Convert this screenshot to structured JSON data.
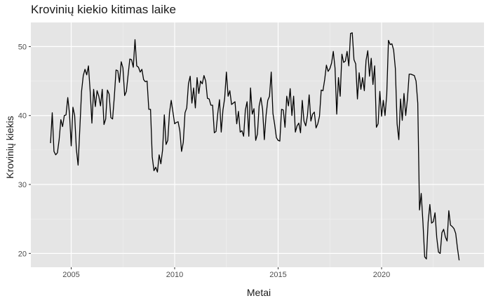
{
  "chart_data": {
    "type": "line",
    "title": "Krovinių kiekio kitimas laike",
    "xlabel": "Metai",
    "ylabel": "Krovinių kiekis",
    "x_start": 2004.0,
    "x_step_months": 1,
    "xlim": [
      2003.05,
      2024.95
    ],
    "ylim": [
      18.0,
      53.5
    ],
    "xticks": [
      2005,
      2010,
      2015,
      2020
    ],
    "yticks": [
      20,
      30,
      40,
      50
    ],
    "xtick_labels": [
      "2005",
      "2010",
      "2015",
      "2020"
    ],
    "ytick_labels": [
      "20",
      "30",
      "40",
      "50"
    ],
    "grid": true,
    "panel_background": "#e5e5e5",
    "line_color": "#000000",
    "values": [
      36.0,
      40.4,
      34.8,
      34.3,
      34.6,
      36.5,
      39.4,
      38.4,
      40.0,
      40.1,
      42.6,
      40.3,
      35.6,
      41.2,
      40.0,
      35.1,
      32.8,
      38.1,
      43.5,
      45.8,
      46.7,
      45.9,
      47.2,
      43.5,
      38.9,
      43.8,
      41.3,
      43.6,
      42.8,
      41.4,
      43.8,
      38.7,
      39.5,
      43.7,
      43.1,
      39.7,
      39.5,
      42.7,
      46.6,
      46.5,
      44.8,
      47.8,
      46.9,
      42.9,
      43.5,
      45.9,
      48.2,
      48.1,
      47.0,
      51.0,
      47.2,
      47.0,
      46.3,
      46.7,
      45.2,
      44.9,
      45.0,
      40.9,
      40.9,
      34.0,
      32.0,
      32.5,
      31.8,
      34.3,
      33.0,
      35.0,
      40.1,
      35.8,
      36.4,
      40.4,
      42.2,
      40.5,
      38.8,
      39.0,
      39.1,
      37.8,
      34.8,
      36.1,
      40.4,
      41.1,
      44.6,
      45.7,
      41.8,
      44.0,
      41.1,
      45.5,
      43.2,
      45.0,
      44.6,
      45.8,
      45.0,
      42.5,
      42.4,
      41.5,
      41.5,
      37.5,
      37.7,
      40.3,
      42.3,
      37.6,
      40.8,
      42.5,
      46.3,
      42.8,
      43.6,
      41.6,
      41.8,
      42.0,
      38.8,
      40.6,
      37.6,
      37.8,
      37.0,
      40.8,
      42.0,
      37.0,
      44.0,
      40.2,
      41.0,
      36.4,
      37.3,
      41.4,
      42.6,
      40.9,
      36.5,
      40.0,
      42.2,
      42.8,
      46.3,
      40.3,
      38.7,
      36.8,
      36.4,
      36.3,
      40.9,
      40.8,
      38.3,
      42.8,
      41.4,
      43.9,
      40.0,
      42.8,
      37.6,
      38.5,
      38.9,
      37.5,
      42.2,
      39.2,
      38.5,
      40.0,
      43.0,
      39.2,
      40.2,
      40.5,
      38.2,
      38.8,
      39.9,
      43.7,
      43.6,
      45.2,
      47.3,
      46.4,
      46.8,
      47.6,
      49.3,
      46.9,
      40.2,
      45.5,
      42.8,
      48.9,
      47.7,
      47.9,
      49.3,
      47.2,
      51.9,
      52.0,
      48.1,
      47.5,
      42.4,
      46.2,
      43.8,
      45.5,
      43.6,
      48.0,
      49.4,
      45.7,
      48.3,
      44.5,
      47.2,
      38.3,
      38.8,
      43.5,
      39.9,
      42.2,
      40.0,
      43.0,
      50.9,
      50.3,
      50.4,
      49.5,
      46.8,
      38.8,
      36.5,
      42.4,
      39.3,
      43.2,
      40.0,
      42.4,
      46.0,
      46.0,
      45.9,
      45.8,
      45.0,
      41.8,
      26.3,
      28.7,
      24.5,
      19.5,
      19.2,
      24.5,
      27.1,
      24.4,
      24.6,
      25.9,
      22.3,
      20.2,
      20.0,
      23.0,
      23.5,
      22.4,
      21.8,
      26.2,
      24.1,
      23.9,
      23.6,
      22.9,
      20.8,
      19.0
    ]
  }
}
